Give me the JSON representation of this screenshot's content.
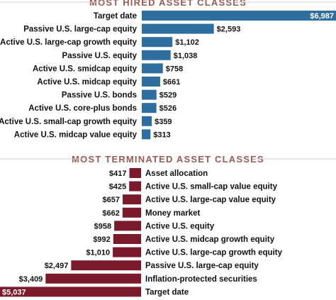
{
  "chart_data": [
    {
      "type": "bar",
      "orientation": "horizontal",
      "title": "MOST HIRED ASSET CLASSES",
      "categories": [
        "Target date",
        "Passive U.S. large-cap equity",
        "Active U.S. large-cap growth equity",
        "Passive U.S. equity",
        "Active U.S. smidcap equity",
        "Active U.S. midcap equity",
        "Passive U.S. bonds",
        "Active U.S. core-plus bonds",
        "Active U.S. small-cap growth equity",
        "Active U.S. midcap value equity"
      ],
      "values": [
        6987,
        2593,
        1102,
        1038,
        758,
        661,
        529,
        526,
        359,
        313
      ],
      "value_labels": [
        "$6,987",
        "$2,593",
        "$1,102",
        "$1,038",
        "$758",
        "$661",
        "$529",
        "$526",
        "$359",
        "$313"
      ],
      "color": "#2f6f9f"
    },
    {
      "type": "bar",
      "orientation": "horizontal",
      "title": "MOST TERMINATED ASSET CLASSES",
      "categories": [
        "Asset allocation",
        "Active U.S. small-cap value equity",
        "Active U.S. large-cap value equity",
        "Money market",
        "Active U.S. equity",
        "Active U.S. midcap growth equity",
        "Active U.S. large-cap growth equity",
        "Passive U.S. large-cap equity",
        "Inflation-protected securities",
        "Target date"
      ],
      "values": [
        417,
        425,
        657,
        662,
        958,
        992,
        1010,
        2497,
        3409,
        5037
      ],
      "value_labels": [
        "$417",
        "$425",
        "$657",
        "$662",
        "$958",
        "$992",
        "$1,010",
        "$2,497",
        "$3,409",
        "$5,037"
      ],
      "color": "#7a1a2a"
    }
  ]
}
